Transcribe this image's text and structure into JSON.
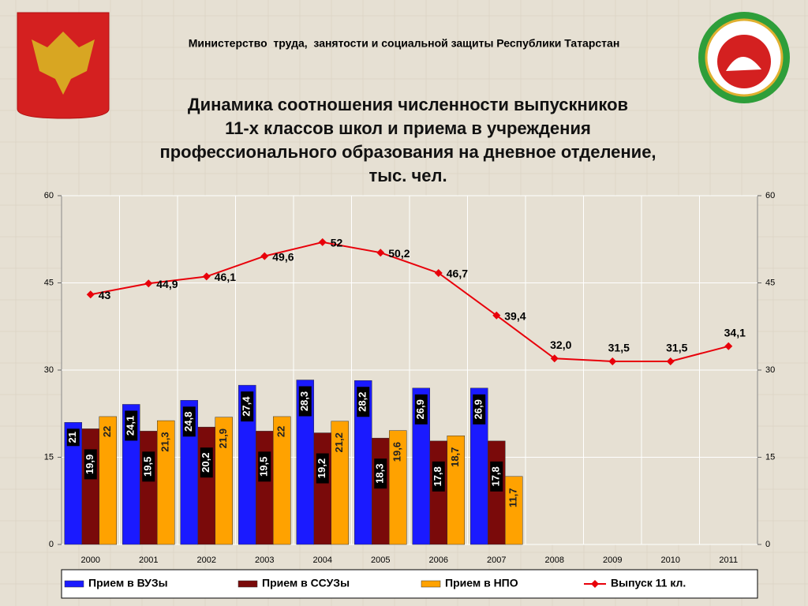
{
  "header": {
    "ministry": "Министерство  труда,  занятости и социальной защиты Республики Татарстан"
  },
  "chart_data": {
    "type": "bar-line",
    "title": [
      "Динамика соотношения численности выпускников",
      "11-х классов школ и приема в учреждения",
      "профессионального образования на дневное отделение,",
      "тыс. чел."
    ],
    "categories": [
      "2000",
      "2001",
      "2002",
      "2003",
      "2004",
      "2005",
      "2006",
      "2007",
      "2008",
      "2009",
      "2010",
      "2011"
    ],
    "series": [
      {
        "name": "Прием в ВУЗы",
        "color": "#1a1aff",
        "type": "bar",
        "values": [
          21,
          24.1,
          24.8,
          27.4,
          28.3,
          28.2,
          26.9,
          26.9,
          null,
          null,
          null,
          null
        ],
        "value_labels": [
          "21",
          "24,1",
          "24,8",
          "27,4",
          "28,3",
          "28,2",
          "26,9",
          "26,9",
          null,
          null,
          null,
          null
        ]
      },
      {
        "name": "Прием в ССУЗы",
        "color": "#7a0a0a",
        "type": "bar",
        "values": [
          19.9,
          19.5,
          20.2,
          19.5,
          19.2,
          18.3,
          17.8,
          17.8,
          null,
          null,
          null,
          null
        ],
        "value_labels": [
          "19,9",
          "19,5",
          "20,2",
          "19,5",
          "19,2",
          "18,3",
          "17,8",
          "17,8",
          null,
          null,
          null,
          null
        ]
      },
      {
        "name": "Прием в НПО",
        "color": "#ffa200",
        "type": "bar",
        "values": [
          22,
          21.3,
          21.9,
          22,
          21.2,
          19.6,
          18.7,
          11.7,
          null,
          null,
          null,
          null
        ],
        "value_labels": [
          "22",
          "21,3",
          "21,9",
          "22",
          "21,2",
          "19,6",
          "18,7",
          "11,7",
          null,
          null,
          null,
          null
        ]
      },
      {
        "name": "Выпуск 11 кл.",
        "color": "#e8000a",
        "type": "line",
        "axis": "y2",
        "values": [
          43,
          44.9,
          46.1,
          49.6,
          52,
          50.2,
          46.7,
          39.4,
          32.0,
          31.5,
          31.5,
          34.1
        ],
        "value_labels": [
          "43",
          "44,9",
          "46,1",
          "49,6",
          "52",
          "50,2",
          "46,7",
          "39,4",
          "32,0",
          "31,5",
          "31,5",
          "34,1"
        ]
      }
    ],
    "ylim": [
      0,
      60
    ],
    "yticks": [
      0,
      15,
      30,
      45,
      60
    ],
    "y2lim": [
      0,
      60
    ],
    "y2ticks": [
      0,
      15,
      30,
      45,
      60
    ],
    "grid": true,
    "legend": "bottom"
  }
}
